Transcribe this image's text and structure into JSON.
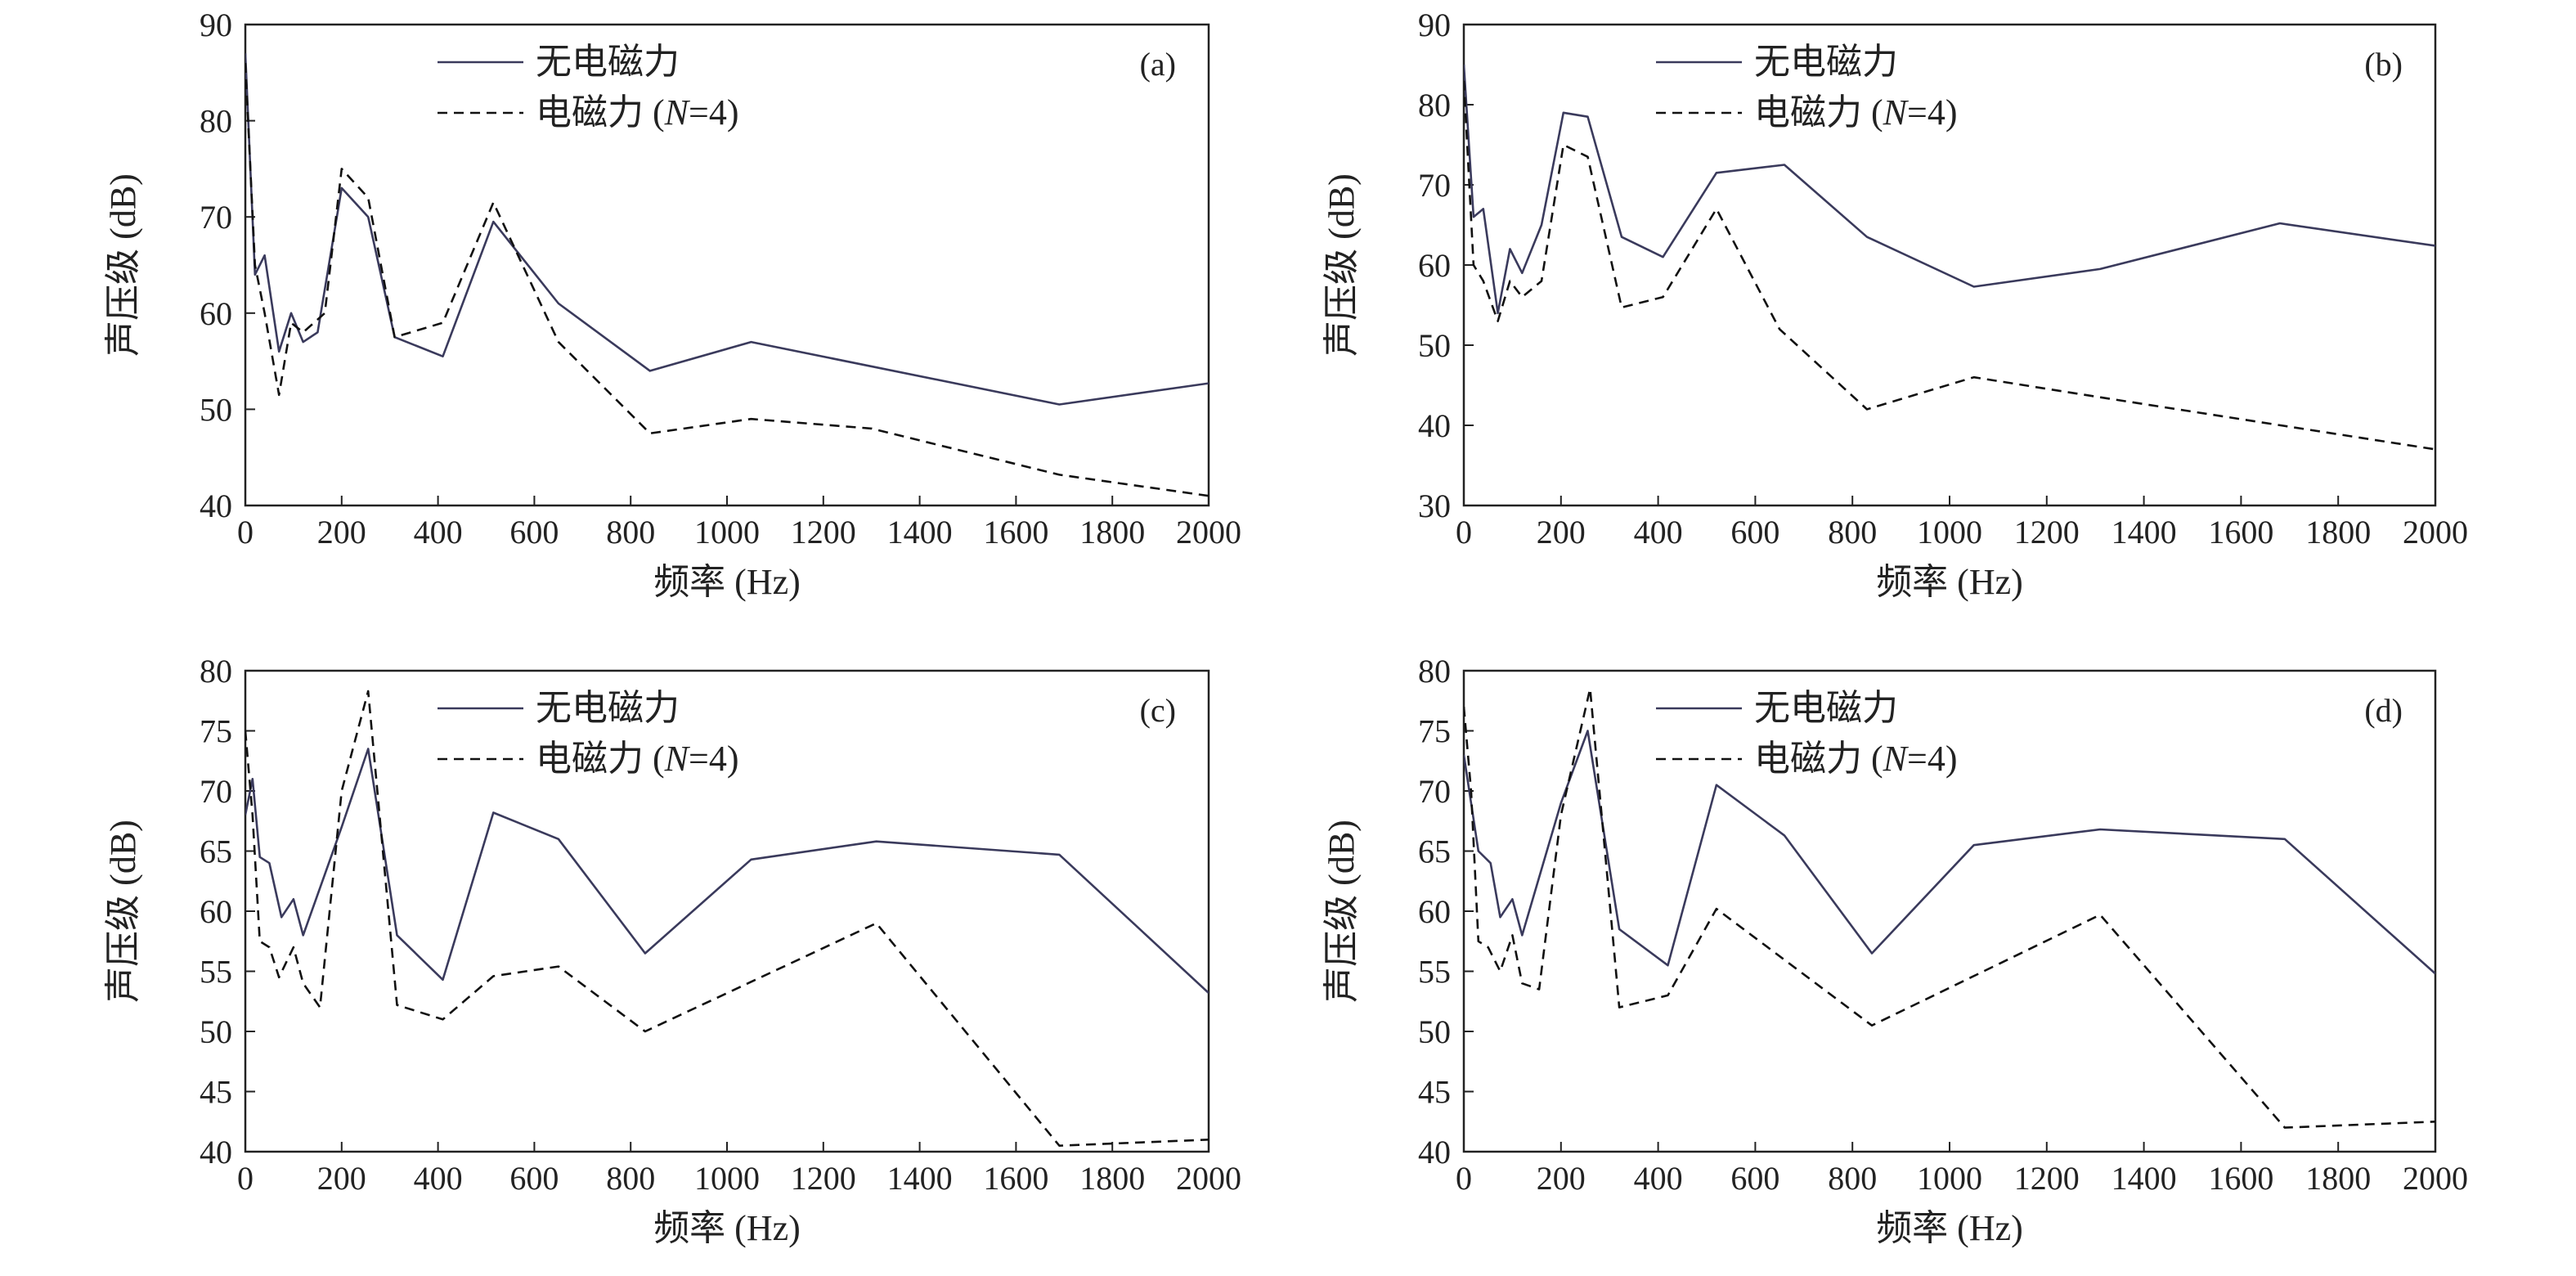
{
  "chart_data": [
    {
      "type": "line",
      "panel_label": "(a)",
      "xlabel": "频率 (Hz)",
      "ylabel": "声压级 (dB)",
      "xlim": [
        0,
        2000
      ],
      "ylim": [
        40,
        90
      ],
      "xticks": [
        0,
        200,
        400,
        600,
        800,
        1000,
        1200,
        1400,
        1600,
        1800,
        2000
      ],
      "yticks": [
        40,
        50,
        60,
        70,
        80,
        90
      ],
      "legend_position": "top-center",
      "series": [
        {
          "name": "无电磁力",
          "style": "solid",
          "color": "#3a3a5c",
          "points": [
            [
              0,
              87
            ],
            [
              20,
              64
            ],
            [
              40,
              66
            ],
            [
              70,
              56
            ],
            [
              95,
              60
            ],
            [
              120,
              57
            ],
            [
              150,
              58
            ],
            [
              200,
              73
            ],
            [
              255,
              70
            ],
            [
              310,
              57.5
            ],
            [
              410,
              55.5
            ],
            [
              515,
              69.5
            ],
            [
              650,
              61
            ],
            [
              840,
              54
            ],
            [
              1050,
              57
            ],
            [
              1690,
              50.5
            ],
            [
              2000,
              52.7
            ]
          ]
        },
        {
          "name": "电磁力 (N=4)",
          "style": "dashed",
          "color": "#111111",
          "points": [
            [
              0,
              86
            ],
            [
              20,
              65
            ],
            [
              40,
              60
            ],
            [
              70,
              51.5
            ],
            [
              95,
              59
            ],
            [
              120,
              58
            ],
            [
              165,
              60
            ],
            [
              200,
              75
            ],
            [
              255,
              72
            ],
            [
              310,
              57.5
            ],
            [
              410,
              59
            ],
            [
              515,
              71.5
            ],
            [
              650,
              57
            ],
            [
              840,
              47.5
            ],
            [
              1050,
              49
            ],
            [
              1300,
              48
            ],
            [
              1690,
              43.2
            ],
            [
              2000,
              41
            ]
          ]
        }
      ]
    },
    {
      "type": "line",
      "panel_label": "(b)",
      "xlabel": "频率 (Hz)",
      "ylabel": "声压级 (dB)",
      "xlim": [
        0,
        2000
      ],
      "ylim": [
        30,
        90
      ],
      "xticks": [
        0,
        200,
        400,
        600,
        800,
        1000,
        1200,
        1400,
        1600,
        1800,
        2000
      ],
      "yticks": [
        30,
        40,
        50,
        60,
        70,
        80,
        90
      ],
      "legend_position": "top-center",
      "series": [
        {
          "name": "无电磁力",
          "style": "solid",
          "color": "#3a3a5c",
          "points": [
            [
              0,
              85
            ],
            [
              20,
              66
            ],
            [
              40,
              67
            ],
            [
              70,
              54
            ],
            [
              95,
              62
            ],
            [
              120,
              59
            ],
            [
              160,
              65
            ],
            [
              205,
              79
            ],
            [
              255,
              78.5
            ],
            [
              325,
              63.5
            ],
            [
              410,
              61
            ],
            [
              520,
              71.5
            ],
            [
              660,
              72.5
            ],
            [
              830,
              63.5
            ],
            [
              1050,
              57.3
            ],
            [
              1310,
              59.5
            ],
            [
              1680,
              65.2
            ],
            [
              2000,
              62.4
            ]
          ]
        },
        {
          "name": "电磁力 (N=4)",
          "style": "dashed",
          "color": "#111111",
          "points": [
            [
              0,
              83
            ],
            [
              20,
              60
            ],
            [
              40,
              58
            ],
            [
              70,
              53
            ],
            [
              95,
              58
            ],
            [
              120,
              56
            ],
            [
              160,
              58
            ],
            [
              205,
              75
            ],
            [
              255,
              73.5
            ],
            [
              325,
              54.7
            ],
            [
              410,
              56
            ],
            [
              520,
              67
            ],
            [
              650,
              52
            ],
            [
              830,
              42
            ],
            [
              1050,
              46
            ],
            [
              1310,
              43.5
            ],
            [
              2000,
              37
            ]
          ]
        }
      ]
    },
    {
      "type": "line",
      "panel_label": "(c)",
      "xlabel": "频率 (Hz)",
      "ylabel": "声压级 (dB)",
      "xlim": [
        0,
        2000
      ],
      "ylim": [
        40,
        80
      ],
      "xticks": [
        0,
        200,
        400,
        600,
        800,
        1000,
        1200,
        1400,
        1600,
        1800,
        2000
      ],
      "yticks": [
        40,
        45,
        50,
        55,
        60,
        65,
        70,
        75,
        80
      ],
      "legend_position": "top-center",
      "series": [
        {
          "name": "无电磁力",
          "style": "solid",
          "color": "#3a3a5c",
          "points": [
            [
              0,
              68
            ],
            [
              15,
              71
            ],
            [
              30,
              64.5
            ],
            [
              50,
              64
            ],
            [
              75,
              59.5
            ],
            [
              100,
              61
            ],
            [
              120,
              58
            ],
            [
              200,
              67
            ],
            [
              255,
              73.5
            ],
            [
              315,
              58
            ],
            [
              410,
              54.3
            ],
            [
              515,
              68.2
            ],
            [
              650,
              66
            ],
            [
              830,
              56.5
            ],
            [
              1050,
              64.3
            ],
            [
              1310,
              65.8
            ],
            [
              1690,
              64.7
            ],
            [
              2000,
              53.2
            ]
          ]
        },
        {
          "name": "电磁力 (N=4)",
          "style": "dashed",
          "color": "#111111",
          "points": [
            [
              0,
              75
            ],
            [
              15,
              68
            ],
            [
              30,
              57.5
            ],
            [
              50,
              57
            ],
            [
              70,
              54.5
            ],
            [
              100,
              57
            ],
            [
              120,
              54
            ],
            [
              155,
              52
            ],
            [
              200,
              70
            ],
            [
              255,
              78.3
            ],
            [
              315,
              52.2
            ],
            [
              410,
              51
            ],
            [
              515,
              54.6
            ],
            [
              650,
              55.4
            ],
            [
              830,
              50
            ],
            [
              1310,
              59
            ],
            [
              1690,
              40.5
            ],
            [
              2000,
              41
            ]
          ]
        }
      ]
    },
    {
      "type": "line",
      "panel_label": "(d)",
      "xlabel": "频率 (Hz)",
      "ylabel": "声压级 (dB)",
      "xlim": [
        0,
        2000
      ],
      "ylim": [
        40,
        80
      ],
      "xticks": [
        0,
        200,
        400,
        600,
        800,
        1000,
        1200,
        1400,
        1600,
        1800,
        2000
      ],
      "yticks": [
        40,
        45,
        50,
        55,
        60,
        65,
        70,
        75,
        80
      ],
      "legend_position": "top-center",
      "series": [
        {
          "name": "无电磁力",
          "style": "solid",
          "color": "#3a3a5c",
          "points": [
            [
              0,
              73
            ],
            [
              15,
              69
            ],
            [
              30,
              65
            ],
            [
              55,
              64
            ],
            [
              75,
              59.5
            ],
            [
              100,
              61
            ],
            [
              120,
              58
            ],
            [
              200,
              69
            ],
            [
              255,
              75
            ],
            [
              320,
              58.5
            ],
            [
              420,
              55.5
            ],
            [
              520,
              70.5
            ],
            [
              660,
              66.3
            ],
            [
              840,
              56.5
            ],
            [
              1050,
              65.5
            ],
            [
              1310,
              66.8
            ],
            [
              1690,
              66
            ],
            [
              2000,
              54.8
            ]
          ]
        },
        {
          "name": "电磁力 (N=4)",
          "style": "dashed",
          "color": "#111111",
          "points": [
            [
              0,
              77
            ],
            [
              15,
              70
            ],
            [
              30,
              57.5
            ],
            [
              50,
              57
            ],
            [
              75,
              55
            ],
            [
              100,
              58
            ],
            [
              120,
              54
            ],
            [
              155,
              53.5
            ],
            [
              200,
              68
            ],
            [
              260,
              78.5
            ],
            [
              320,
              52
            ],
            [
              420,
              53
            ],
            [
              520,
              60.2
            ],
            [
              840,
              50.5
            ],
            [
              1310,
              59.7
            ],
            [
              1690,
              42
            ],
            [
              2000,
              42.5
            ]
          ]
        }
      ]
    }
  ]
}
